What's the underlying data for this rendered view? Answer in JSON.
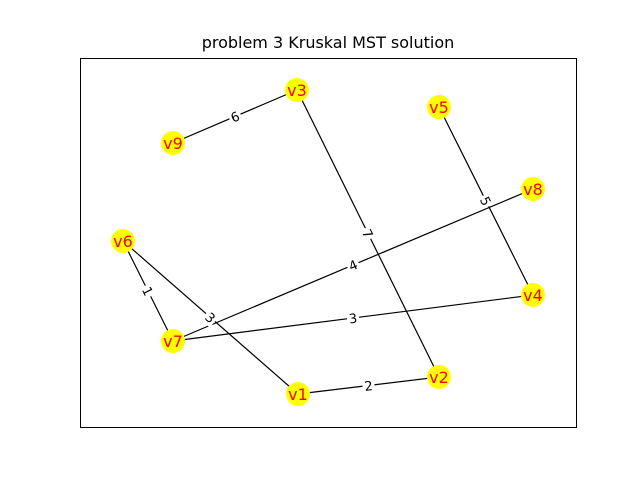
{
  "title": "problem 3 Kruskal MST solution",
  "colors": {
    "node_fill": "#ffff00",
    "node_label": "#ff0000",
    "edge": "#000000",
    "frame": "#000000"
  },
  "nodes": [
    {
      "id": "v1",
      "label": "v1"
    },
    {
      "id": "v2",
      "label": "v2"
    },
    {
      "id": "v3",
      "label": "v3"
    },
    {
      "id": "v4",
      "label": "v4"
    },
    {
      "id": "v5",
      "label": "v5"
    },
    {
      "id": "v6",
      "label": "v6"
    },
    {
      "id": "v7",
      "label": "v7"
    },
    {
      "id": "v8",
      "label": "v8"
    },
    {
      "id": "v9",
      "label": "v9"
    }
  ],
  "edges": [
    {
      "source": "v9",
      "target": "v3",
      "weight": "6"
    },
    {
      "source": "v3",
      "target": "v2",
      "weight": "7"
    },
    {
      "source": "v5",
      "target": "v4",
      "weight": "5"
    },
    {
      "source": "v8",
      "target": "v7",
      "weight": "4"
    },
    {
      "source": "v7",
      "target": "v4",
      "weight": "3"
    },
    {
      "source": "v6",
      "target": "v7",
      "weight": "1"
    },
    {
      "source": "v6",
      "target": "v1",
      "weight": "3"
    },
    {
      "source": "v1",
      "target": "v2",
      "weight": "2"
    }
  ]
}
